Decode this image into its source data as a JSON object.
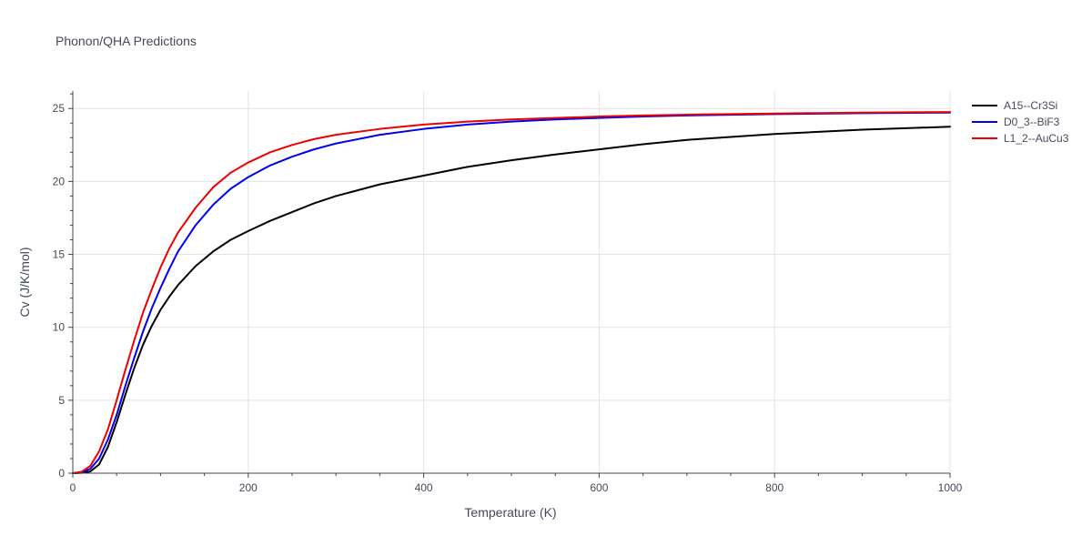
{
  "chart_data": {
    "type": "line",
    "title": "Phonon/QHA Predictions",
    "xlabel": "Temperature (K)",
    "ylabel": "Cv (J/K/mol)",
    "xlim": [
      0,
      1000
    ],
    "ylim": [
      0,
      26.2
    ],
    "x_ticks": [
      0,
      200,
      400,
      600,
      800,
      1000
    ],
    "x_tick_labels": [
      "0",
      "200",
      "400",
      "600",
      "800",
      "1000"
    ],
    "y_ticks": [
      0,
      5,
      10,
      15,
      20,
      25
    ],
    "y_tick_labels": [
      "0",
      "5",
      "10",
      "15",
      "20",
      "25"
    ],
    "grid": true,
    "legend_position": "top-right",
    "series": [
      {
        "name": "A15--Cr3Si",
        "color": "#000000",
        "x": [
          0,
          10,
          20,
          30,
          40,
          50,
          60,
          70,
          80,
          90,
          100,
          110,
          120,
          140,
          160,
          180,
          200,
          225,
          250,
          275,
          300,
          350,
          400,
          450,
          500,
          550,
          600,
          650,
          700,
          800,
          900,
          1000
        ],
        "y": [
          0,
          0.02,
          0.12,
          0.6,
          1.8,
          3.5,
          5.4,
          7.2,
          8.8,
          10.1,
          11.2,
          12.1,
          12.9,
          14.2,
          15.2,
          16.0,
          16.6,
          17.3,
          17.9,
          18.5,
          19.0,
          19.8,
          20.4,
          21.0,
          21.45,
          21.85,
          22.2,
          22.55,
          22.85,
          23.25,
          23.55,
          23.75
        ]
      },
      {
        "name": "D0_3--BiF3",
        "color": "#0000ee",
        "x": [
          0,
          10,
          20,
          30,
          40,
          50,
          60,
          70,
          80,
          90,
          100,
          110,
          120,
          140,
          160,
          180,
          200,
          225,
          250,
          275,
          300,
          350,
          400,
          450,
          500,
          550,
          600,
          650,
          700,
          800,
          900,
          1000
        ],
        "y": [
          0,
          0.05,
          0.3,
          1.0,
          2.3,
          4.0,
          6.0,
          7.9,
          9.7,
          11.3,
          12.7,
          14.0,
          15.2,
          17.0,
          18.4,
          19.5,
          20.3,
          21.1,
          21.7,
          22.2,
          22.6,
          23.2,
          23.6,
          23.9,
          24.1,
          24.25,
          24.35,
          24.45,
          24.52,
          24.62,
          24.68,
          24.72
        ]
      },
      {
        "name": "L1_2--AuCu3",
        "color": "#ee0000",
        "x": [
          0,
          10,
          20,
          30,
          40,
          50,
          60,
          70,
          80,
          90,
          100,
          110,
          120,
          140,
          160,
          180,
          200,
          225,
          250,
          275,
          300,
          350,
          400,
          450,
          500,
          550,
          600,
          650,
          700,
          800,
          900,
          1000
        ],
        "y": [
          0,
          0.1,
          0.5,
          1.5,
          3.0,
          5.0,
          7.1,
          9.1,
          11.0,
          12.6,
          14.1,
          15.4,
          16.5,
          18.2,
          19.6,
          20.6,
          21.3,
          22.0,
          22.5,
          22.9,
          23.2,
          23.6,
          23.9,
          24.1,
          24.25,
          24.35,
          24.45,
          24.52,
          24.58,
          24.66,
          24.72,
          24.76
        ]
      }
    ]
  }
}
